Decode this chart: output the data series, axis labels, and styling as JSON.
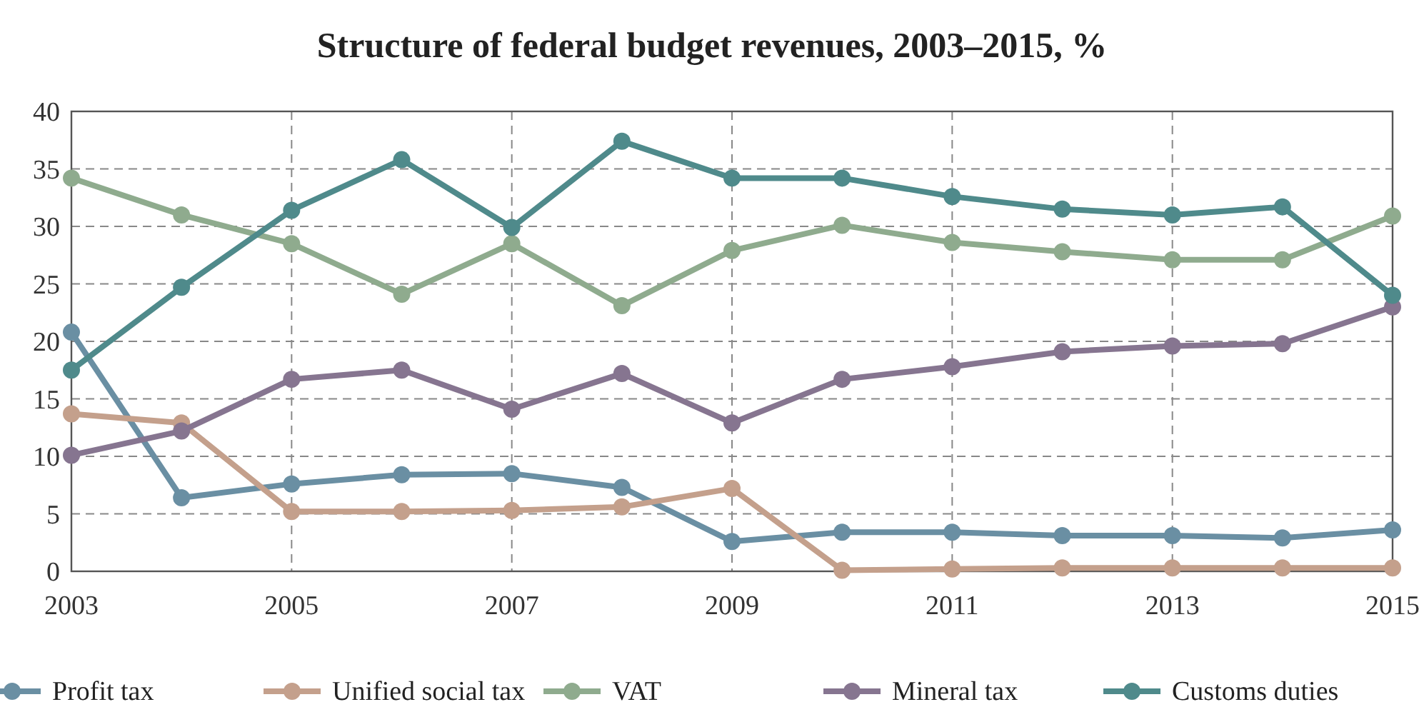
{
  "chart_data": {
    "type": "line",
    "title": "Structure of federal budget revenues, 2003–2015, %",
    "x": [
      2003,
      2004,
      2005,
      2006,
      2007,
      2008,
      2009,
      2010,
      2011,
      2012,
      2013,
      2014,
      2015
    ],
    "series": [
      {
        "name": "Profit tax",
        "color": "#6a8fa3",
        "values": [
          20.8,
          6.4,
          7.6,
          8.4,
          8.5,
          7.3,
          2.6,
          3.4,
          3.4,
          3.1,
          3.1,
          2.9,
          3.6
        ]
      },
      {
        "name": "Unified social tax",
        "color": "#c4a08c",
        "values": [
          13.7,
          12.9,
          5.2,
          5.2,
          5.3,
          5.6,
          7.2,
          0.1,
          0.2,
          0.3,
          0.3,
          0.3,
          0.3
        ]
      },
      {
        "name": "VAT",
        "color": "#8fab8e",
        "values": [
          34.2,
          31,
          28.5,
          24.1,
          28.5,
          23.1,
          27.9,
          30.1,
          28.6,
          27.8,
          27.1,
          27.1,
          30.9
        ]
      },
      {
        "name": "Mineral tax",
        "color": "#867590",
        "values": [
          10.1,
          12.2,
          16.7,
          17.5,
          14.1,
          17.2,
          12.9,
          16.7,
          17.8,
          19.1,
          19.6,
          19.8,
          23.0
        ]
      },
      {
        "name": "Customs duties",
        "color": "#4f8a8b",
        "values": [
          17.5,
          24.7,
          31.4,
          35.8,
          29.9,
          37.4,
          34.2,
          34.2,
          32.6,
          31.5,
          31.0,
          31.7,
          24.0
        ]
      }
    ],
    "xlim": [
      2003,
      2015
    ],
    "xticks": [
      2003,
      2005,
      2007,
      2009,
      2011,
      2013,
      2015
    ],
    "ylim": [
      0,
      40
    ],
    "yticks": [
      0,
      5,
      10,
      15,
      20,
      25,
      30,
      35,
      40
    ],
    "grid": true,
    "legend": "bottom",
    "marker": "circle",
    "line_style": "solid"
  }
}
